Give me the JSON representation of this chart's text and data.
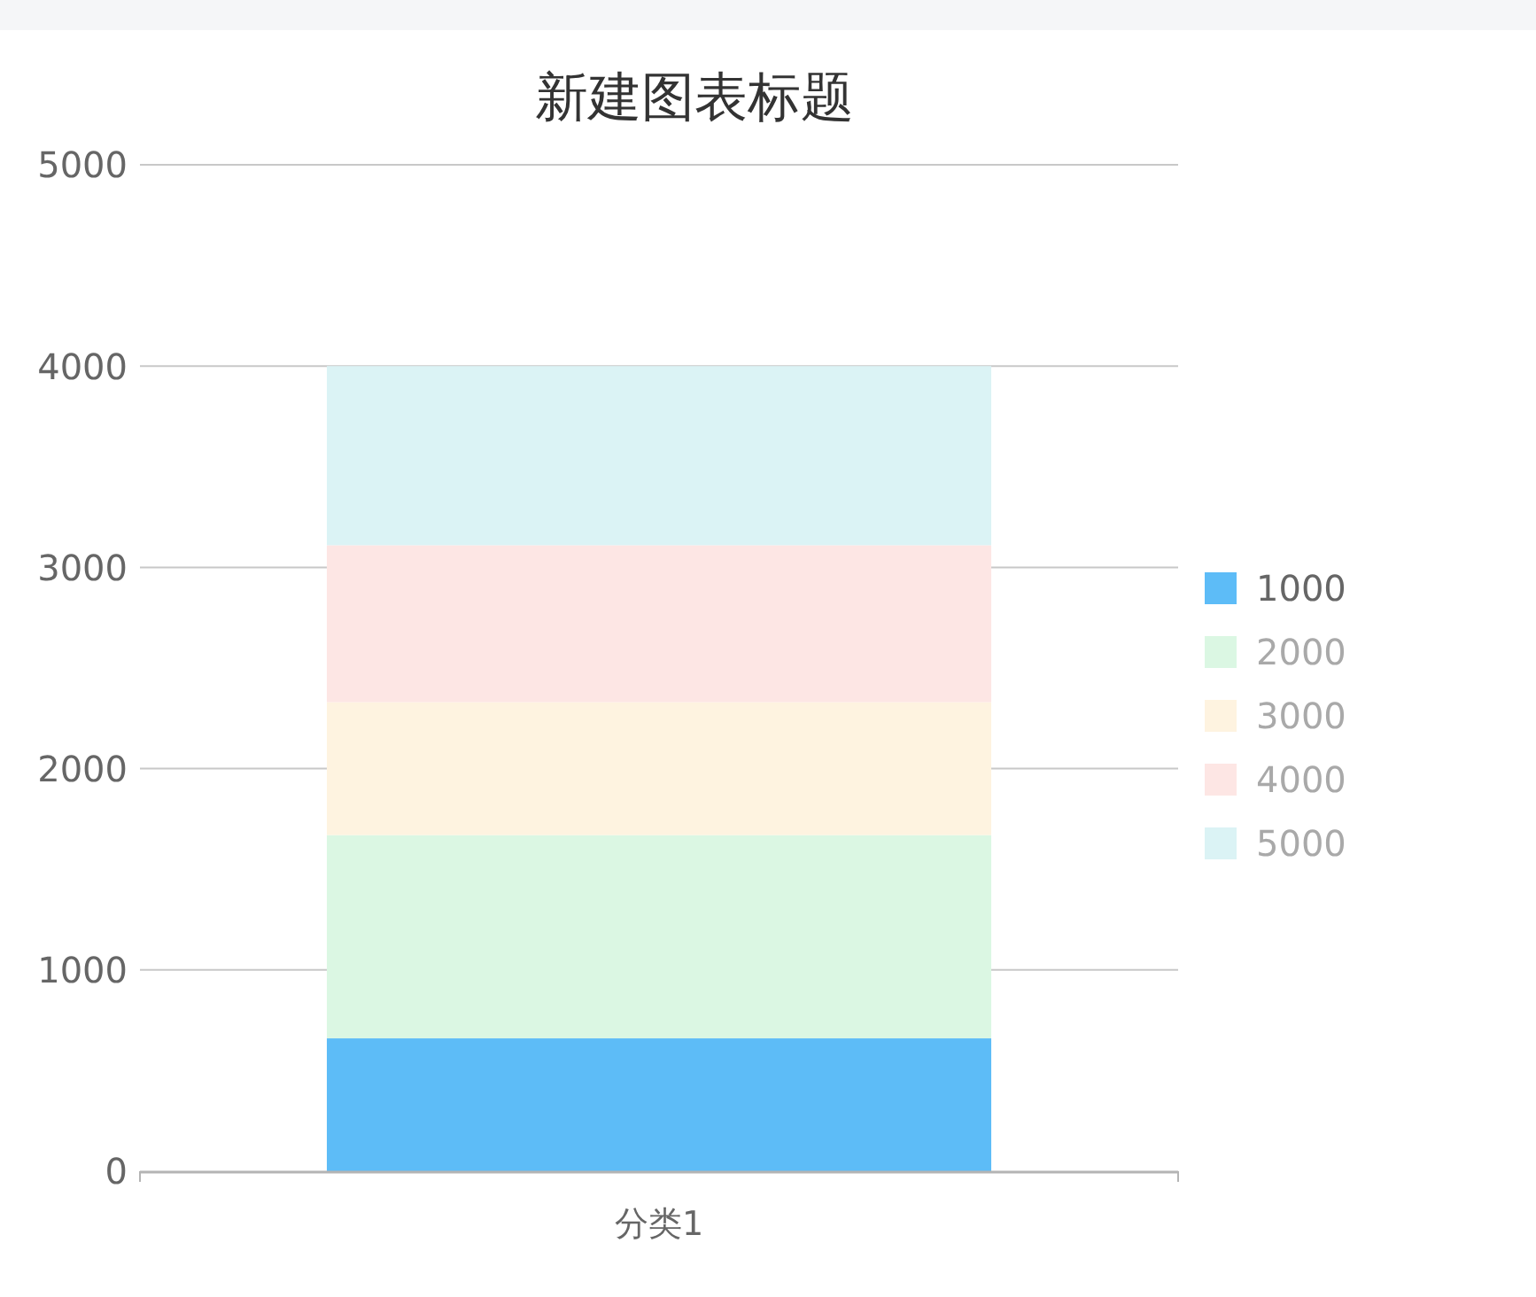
{
  "chart_data": {
    "type": "bar",
    "title": "新建图表标题",
    "categories": [
      "分类1"
    ],
    "stacked": true,
    "series": [
      {
        "name": "1000",
        "color": "#5dbcf7",
        "values": [
          660
        ]
      },
      {
        "name": "2000",
        "color": "#dbf7e3",
        "values": [
          1010
        ]
      },
      {
        "name": "3000",
        "color": "#fef3e0",
        "values": [
          660
        ]
      },
      {
        "name": "4000",
        "color": "#fde6e4",
        "values": [
          780
        ]
      },
      {
        "name": "5000",
        "color": "#dbf3f5",
        "values": [
          890
        ]
      }
    ],
    "ylim": [
      0,
      5000
    ],
    "yticks": [
      0,
      1000,
      2000,
      3000,
      4000,
      5000
    ],
    "grid": "y",
    "legend": "right"
  }
}
